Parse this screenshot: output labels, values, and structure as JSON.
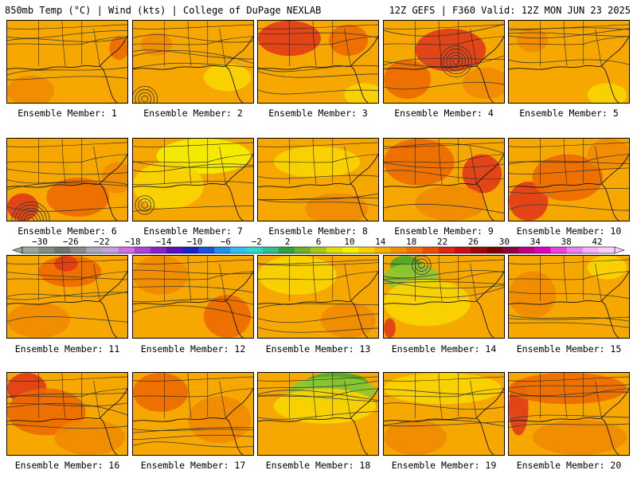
{
  "header": {
    "left": "850mb Temp (°C) | Wind (kts) | College of DuPage NEXLAB",
    "right": "12Z GEFS | F360 Valid: 12Z MON JUN 23 2025"
  },
  "colors": {
    "base_orange": "#f7a800",
    "warm_orange": "#f08a00",
    "hot_orange": "#ec6a00",
    "red": "#e03a18",
    "yellow": "#f8d400",
    "bright_yellow": "#f5f000",
    "green": "#46a82a",
    "light_green": "#8cc832"
  },
  "members": [
    {
      "id": 1,
      "label": "Ensemble Member: 1"
    },
    {
      "id": 2,
      "label": "Ensemble Member: 2"
    },
    {
      "id": 3,
      "label": "Ensemble Member: 3"
    },
    {
      "id": 4,
      "label": "Ensemble Member: 4"
    },
    {
      "id": 5,
      "label": "Ensemble Member: 5"
    },
    {
      "id": 6,
      "label": "Ensemble Member: 6"
    },
    {
      "id": 7,
      "label": "Ensemble Member: 7"
    },
    {
      "id": 8,
      "label": "Ensemble Member: 8"
    },
    {
      "id": 9,
      "label": "Ensemble Member: 9"
    },
    {
      "id": 10,
      "label": "Ensemble Member: 10"
    },
    {
      "id": 11,
      "label": "Ensemble Member: 11"
    },
    {
      "id": 12,
      "label": "Ensemble Member: 12"
    },
    {
      "id": 13,
      "label": "Ensemble Member: 13"
    },
    {
      "id": 14,
      "label": "Ensemble Member: 14"
    },
    {
      "id": 15,
      "label": "Ensemble Member: 15"
    },
    {
      "id": 16,
      "label": "Ensemble Member: 16"
    },
    {
      "id": 17,
      "label": "Ensemble Member: 17"
    },
    {
      "id": 18,
      "label": "Ensemble Member: 18"
    },
    {
      "id": 19,
      "label": "Ensemble Member: 19"
    },
    {
      "id": 20,
      "label": "Ensemble Member: 20"
    }
  ],
  "colorbar": {
    "tick_labels": [
      "−30",
      "−26",
      "−22",
      "−18",
      "−14",
      "−10",
      "−6",
      "−2",
      "2",
      "6",
      "10",
      "14",
      "18",
      "22",
      "26",
      "30",
      "34",
      "38",
      "42"
    ],
    "colors": [
      "#9aa89a",
      "#7f8f80",
      "#6a786a",
      "#8a8a8a",
      "#a8a8b8",
      "#c8a0d8",
      "#d070e0",
      "#b040d8",
      "#8a20c8",
      "#5a10c0",
      "#2020c8",
      "#1e50e0",
      "#1e90f0",
      "#30c0f0",
      "#30d8c8",
      "#30c090",
      "#30a040",
      "#70b020",
      "#a8c818",
      "#e0e000",
      "#f8f000",
      "#f8d000",
      "#f8b000",
      "#f49000",
      "#f07000",
      "#e85000",
      "#e02810",
      "#c81010",
      "#a00808",
      "#800000",
      "#900040",
      "#c00080",
      "#e000c0",
      "#f040e0",
      "#f080f0",
      "#f8b0f8",
      "#f8d0f8"
    ]
  }
}
